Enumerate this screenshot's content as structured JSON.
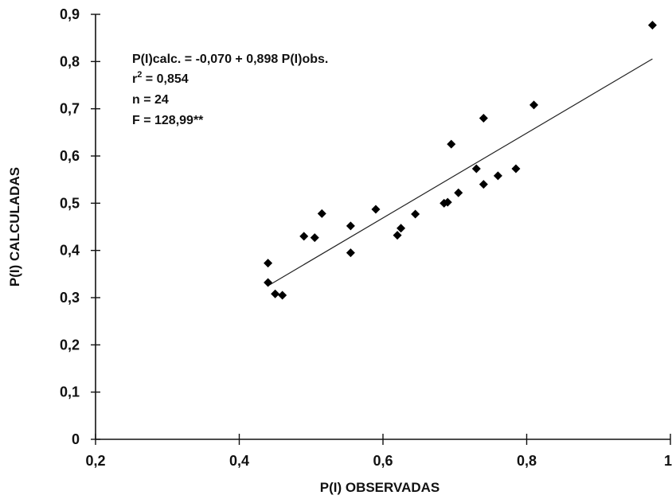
{
  "chart_data": {
    "type": "scatter",
    "title": "",
    "xlabel": "P(I) OBSERVADAS",
    "ylabel": "P(I) CALCULADAS",
    "xlim": [
      0.2,
      1.0
    ],
    "ylim": [
      0,
      0.9
    ],
    "x_ticks": [
      0.2,
      0.4,
      0.6,
      0.8,
      1.0
    ],
    "x_tick_labels": [
      "0,2",
      "0,4",
      "0,6",
      "0,8",
      "1"
    ],
    "y_ticks": [
      0,
      0.1,
      0.2,
      0.3,
      0.4,
      0.5,
      0.6,
      0.7,
      0.8,
      0.9
    ],
    "y_tick_labels": [
      "0",
      "0,1",
      "0,2",
      "0,3",
      "0,4",
      "0,5",
      "0,6",
      "0,7",
      "0,8",
      "0,9"
    ],
    "grid": false,
    "points": [
      {
        "x": 0.44,
        "y": 0.373
      },
      {
        "x": 0.44,
        "y": 0.332
      },
      {
        "x": 0.45,
        "y": 0.308
      },
      {
        "x": 0.46,
        "y": 0.305
      },
      {
        "x": 0.49,
        "y": 0.43
      },
      {
        "x": 0.505,
        "y": 0.427
      },
      {
        "x": 0.515,
        "y": 0.478
      },
      {
        "x": 0.555,
        "y": 0.452
      },
      {
        "x": 0.555,
        "y": 0.395
      },
      {
        "x": 0.59,
        "y": 0.487
      },
      {
        "x": 0.62,
        "y": 0.432
      },
      {
        "x": 0.625,
        "y": 0.447
      },
      {
        "x": 0.645,
        "y": 0.477
      },
      {
        "x": 0.685,
        "y": 0.5
      },
      {
        "x": 0.69,
        "y": 0.502
      },
      {
        "x": 0.695,
        "y": 0.625
      },
      {
        "x": 0.705,
        "y": 0.522
      },
      {
        "x": 0.73,
        "y": 0.573
      },
      {
        "x": 0.74,
        "y": 0.54
      },
      {
        "x": 0.74,
        "y": 0.68
      },
      {
        "x": 0.76,
        "y": 0.558
      },
      {
        "x": 0.785,
        "y": 0.573
      },
      {
        "x": 0.81,
        "y": 0.708
      },
      {
        "x": 0.975,
        "y": 0.877
      }
    ],
    "regression": {
      "intercept": -0.07,
      "slope": 0.898,
      "x_from": 0.44,
      "x_to": 0.975
    },
    "annotations": {
      "equation": "P(I)calc. = -0,070 + 0,898 P(I)obs.",
      "r2_prefix": "r",
      "r2_exp": "2",
      "r2_value": " = 0,854",
      "n_line": "n = 24",
      "f_line": "F = 128,99**"
    }
  }
}
